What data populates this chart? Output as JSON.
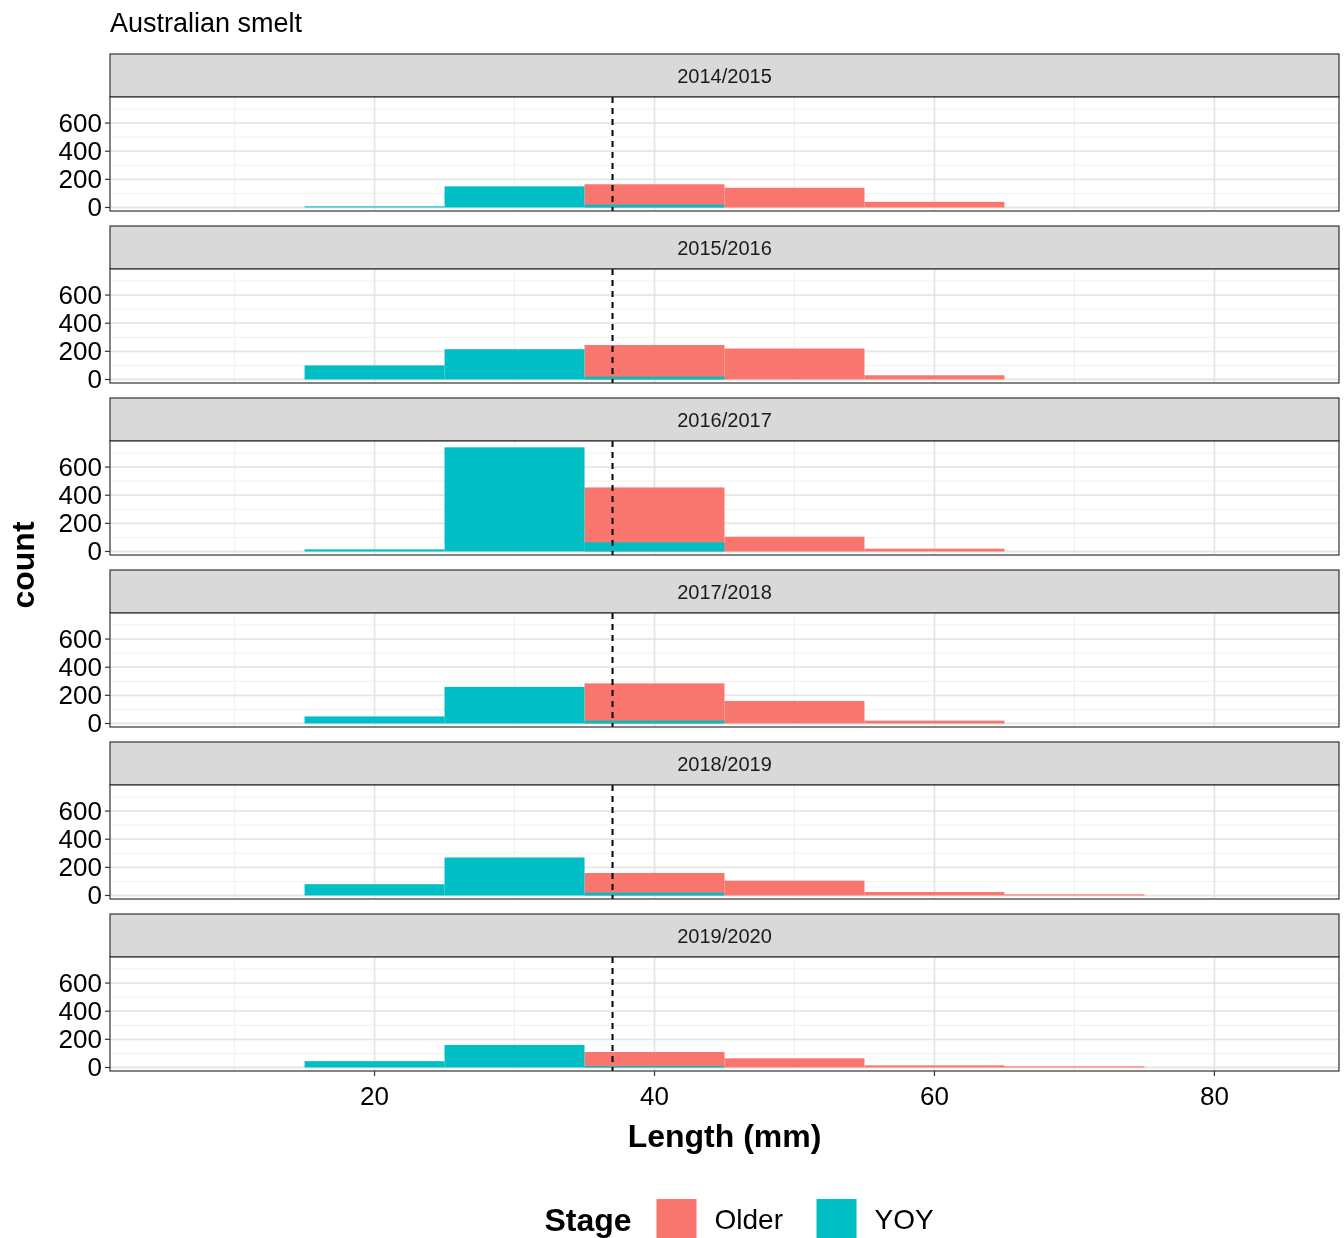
{
  "chart_data": [
    {
      "type": "histogram",
      "title": "Australian smelt",
      "subtitle": "2014/2015",
      "bins": [
        15,
        25,
        35,
        45,
        55,
        65,
        75
      ],
      "xlim": [
        1.1,
        88.9
      ],
      "xticks": [
        20,
        40,
        60,
        80
      ],
      "ylim": [
        -25,
        785
      ],
      "yticks": [
        0,
        200,
        400,
        600
      ],
      "grid": true,
      "tick_labels": "y",
      "ref_lines": [
        {
          "axis": "x",
          "value": 37,
          "color": "#000000",
          "line_style": "dashed"
        }
      ],
      "series": [
        {
          "color": "#f8766d",
          "values": [
            0,
            0,
            165,
            140,
            40,
            0
          ]
        },
        {
          "color": "#00bfc4",
          "values": [
            8,
            150,
            20,
            0,
            0,
            0
          ]
        }
      ]
    },
    {
      "type": "histogram",
      "title": "2015/2016",
      "bins": [
        15,
        25,
        35,
        45,
        55,
        65,
        75
      ],
      "xlim": [
        1.1,
        88.9
      ],
      "xticks": [
        20,
        40,
        60,
        80
      ],
      "ylim": [
        -25,
        785
      ],
      "yticks": [
        0,
        200,
        400,
        600
      ],
      "grid": true,
      "tick_labels": "y",
      "ref_lines": [
        {
          "axis": "x",
          "value": 37,
          "color": "#000000",
          "line_style": "dashed"
        }
      ],
      "series": [
        {
          "color": "#f8766d",
          "values": [
            0,
            0,
            245,
            220,
            30,
            0
          ]
        },
        {
          "color": "#00bfc4",
          "values": [
            100,
            215,
            20,
            0,
            0,
            0
          ]
        }
      ]
    },
    {
      "type": "histogram",
      "title": "2016/2017",
      "ylabel": "count",
      "bins": [
        15,
        25,
        35,
        45,
        55,
        65,
        75
      ],
      "xlim": [
        1.1,
        88.9
      ],
      "xticks": [
        20,
        40,
        60,
        80
      ],
      "ylim": [
        -25,
        785
      ],
      "yticks": [
        0,
        200,
        400,
        600
      ],
      "grid": true,
      "tick_labels": "y",
      "ref_lines": [
        {
          "axis": "x",
          "value": 37,
          "color": "#000000",
          "line_style": "dashed"
        }
      ],
      "series": [
        {
          "color": "#f8766d",
          "values": [
            0,
            0,
            455,
            105,
            20,
            0
          ]
        },
        {
          "color": "#00bfc4",
          "values": [
            15,
            740,
            65,
            0,
            0,
            0
          ]
        }
      ]
    },
    {
      "type": "histogram",
      "title": "2017/2018",
      "bins": [
        15,
        25,
        35,
        45,
        55,
        65,
        75
      ],
      "xlim": [
        1.1,
        88.9
      ],
      "xticks": [
        20,
        40,
        60,
        80
      ],
      "ylim": [
        -25,
        785
      ],
      "yticks": [
        0,
        200,
        400,
        600
      ],
      "grid": true,
      "tick_labels": "y",
      "ref_lines": [
        {
          "axis": "x",
          "value": 37,
          "color": "#000000",
          "line_style": "dashed"
        }
      ],
      "series": [
        {
          "color": "#f8766d",
          "values": [
            0,
            0,
            285,
            160,
            20,
            0
          ]
        },
        {
          "color": "#00bfc4",
          "values": [
            50,
            260,
            20,
            0,
            0,
            0
          ]
        }
      ]
    },
    {
      "type": "histogram",
      "title": "2018/2019",
      "bins": [
        15,
        25,
        35,
        45,
        55,
        65,
        75
      ],
      "xlim": [
        1.1,
        88.9
      ],
      "xticks": [
        20,
        40,
        60,
        80
      ],
      "ylim": [
        -25,
        785
      ],
      "yticks": [
        0,
        200,
        400,
        600
      ],
      "grid": true,
      "tick_labels": "y",
      "ref_lines": [
        {
          "axis": "x",
          "value": 37,
          "color": "#000000",
          "line_style": "dashed"
        }
      ],
      "series": [
        {
          "color": "#f8766d",
          "values": [
            0,
            0,
            160,
            105,
            25,
            8
          ]
        },
        {
          "color": "#00bfc4",
          "values": [
            80,
            270,
            20,
            0,
            0,
            0
          ]
        }
      ]
    },
    {
      "type": "histogram",
      "title": "2019/2020",
      "xlabel": "Length (mm)",
      "legend": "bottom",
      "legend_title": "Stage",
      "bins": [
        15,
        25,
        35,
        45,
        55,
        65,
        75
      ],
      "xlim": [
        1.1,
        88.9
      ],
      "xticks": [
        20,
        40,
        60,
        80
      ],
      "ylim": [
        -25,
        785
      ],
      "yticks": [
        0,
        200,
        400,
        600
      ],
      "grid": true,
      "ref_lines": [
        {
          "axis": "x",
          "value": 37,
          "color": "#000000",
          "line_style": "dashed"
        }
      ],
      "series": [
        {
          "name": "Older",
          "color": "#f8766d",
          "values": [
            0,
            0,
            110,
            65,
            15,
            8
          ]
        },
        {
          "name": "YOY",
          "color": "#00bfc4",
          "values": [
            45,
            160,
            10,
            0,
            0,
            0
          ]
        }
      ]
    }
  ]
}
